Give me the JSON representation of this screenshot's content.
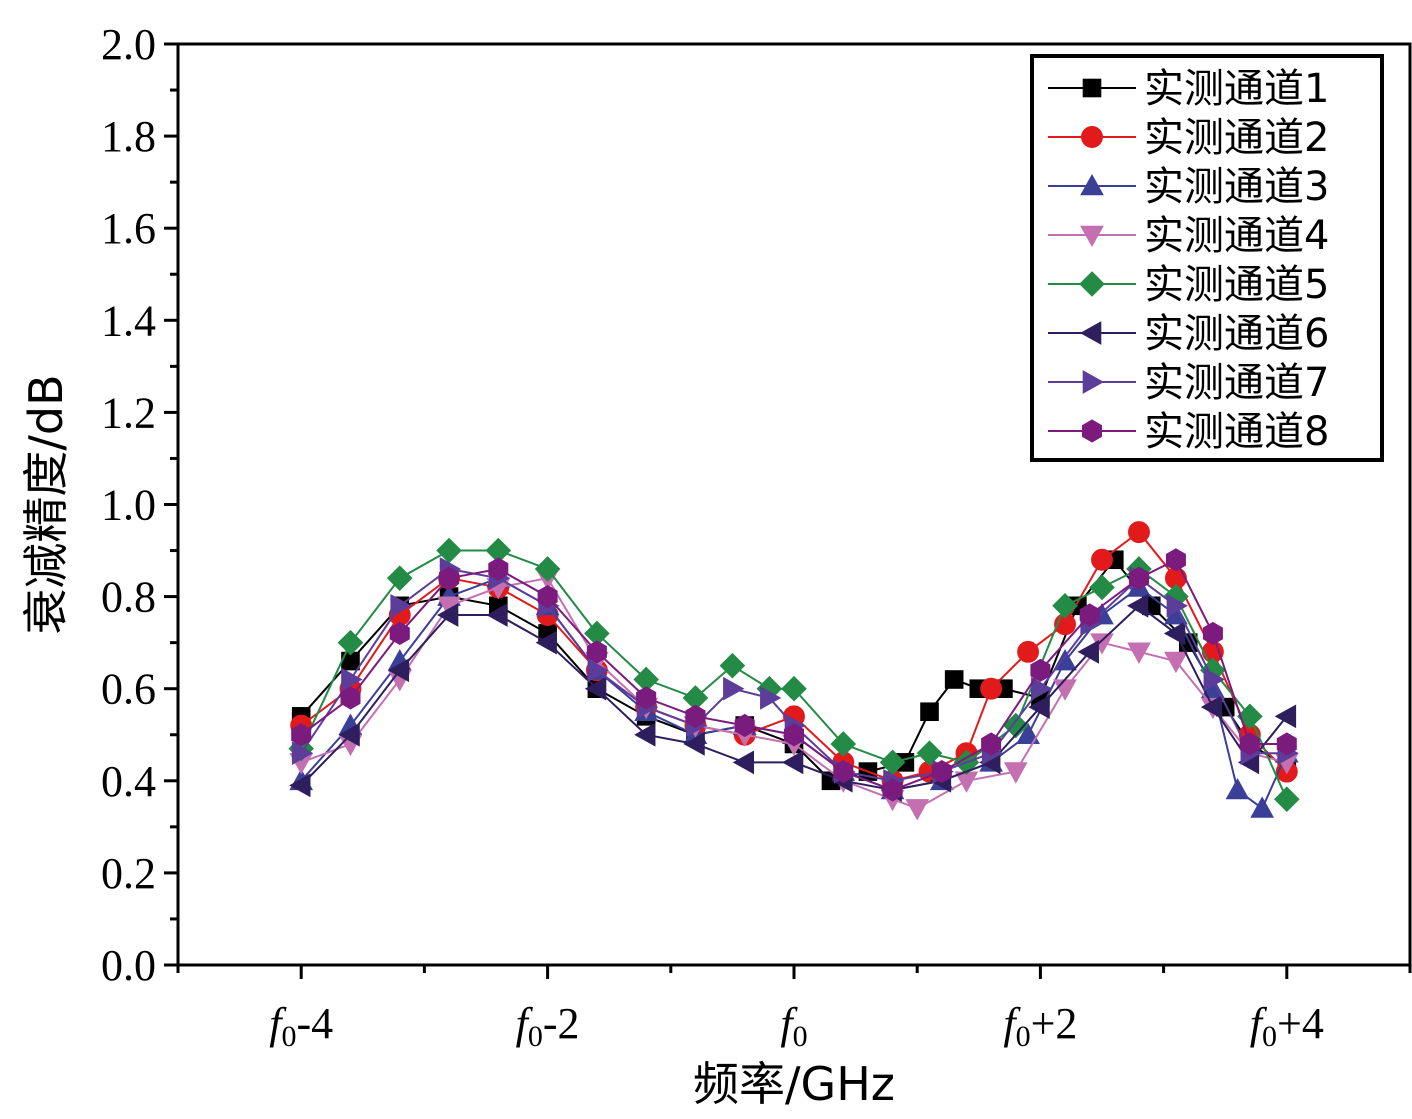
{
  "chart_data": {
    "type": "line",
    "title": "",
    "xlabel": "频率/GHz",
    "ylabel": "衰减精度/dB",
    "xlim": [
      -5,
      5
    ],
    "ylim": [
      0,
      2.0
    ],
    "x_ticks": [
      {
        "value": -4,
        "base": "f",
        "sub": "0",
        "suffix": "-4"
      },
      {
        "value": -2,
        "base": "f",
        "sub": "0",
        "suffix": "-2"
      },
      {
        "value": 0,
        "base": "f",
        "sub": "0",
        "suffix": ""
      },
      {
        "value": 2,
        "base": "f",
        "sub": "0",
        "suffix": "+2"
      },
      {
        "value": 4,
        "base": "f",
        "sub": "0",
        "suffix": "+4"
      }
    ],
    "y_ticks": [
      "0.0",
      "0.2",
      "0.4",
      "0.6",
      "0.8",
      "1.0",
      "1.2",
      "1.4",
      "1.6",
      "1.8",
      "2.0"
    ],
    "grid": false,
    "legend_position": "top-right",
    "series": [
      {
        "name": "实测通道1",
        "color": "#000000",
        "marker": "square",
        "points": [
          [
            -4,
            0.54
          ],
          [
            -3.6,
            0.66
          ],
          [
            -3.2,
            0.78
          ],
          [
            -2.8,
            0.8
          ],
          [
            -2.4,
            0.78
          ],
          [
            -2.0,
            0.72
          ],
          [
            -1.6,
            0.6
          ],
          [
            -1.2,
            0.54
          ],
          [
            -0.8,
            0.5
          ],
          [
            -0.4,
            0.52
          ],
          [
            0,
            0.48
          ],
          [
            0.3,
            0.4
          ],
          [
            0.6,
            0.42
          ],
          [
            0.9,
            0.44
          ],
          [
            1.1,
            0.55
          ],
          [
            1.3,
            0.62
          ],
          [
            1.5,
            0.6
          ],
          [
            1.7,
            0.6
          ],
          [
            2.0,
            0.58
          ],
          [
            2.3,
            0.78
          ],
          [
            2.6,
            0.88
          ],
          [
            2.9,
            0.78
          ],
          [
            3.2,
            0.7
          ],
          [
            3.5,
            0.56
          ],
          [
            3.7,
            0.48
          ],
          [
            4.0,
            0.43
          ]
        ]
      },
      {
        "name": "实测通道2",
        "color": "#e31a1c",
        "marker": "circle",
        "points": [
          [
            -4,
            0.52
          ],
          [
            -3.6,
            0.6
          ],
          [
            -3.2,
            0.76
          ],
          [
            -2.8,
            0.84
          ],
          [
            -2.4,
            0.82
          ],
          [
            -2.0,
            0.76
          ],
          [
            -1.6,
            0.64
          ],
          [
            -1.2,
            0.56
          ],
          [
            -0.8,
            0.52
          ],
          [
            -0.4,
            0.5
          ],
          [
            0,
            0.54
          ],
          [
            0.4,
            0.44
          ],
          [
            0.8,
            0.4
          ],
          [
            1.1,
            0.42
          ],
          [
            1.4,
            0.46
          ],
          [
            1.6,
            0.6
          ],
          [
            1.9,
            0.68
          ],
          [
            2.2,
            0.74
          ],
          [
            2.5,
            0.88
          ],
          [
            2.8,
            0.94
          ],
          [
            3.1,
            0.84
          ],
          [
            3.4,
            0.68
          ],
          [
            3.7,
            0.5
          ],
          [
            4.0,
            0.42
          ]
        ]
      },
      {
        "name": "实测通道3",
        "color": "#3a3f98",
        "marker": "triangle-up",
        "points": [
          [
            -4,
            0.4
          ],
          [
            -3.6,
            0.52
          ],
          [
            -3.2,
            0.66
          ],
          [
            -2.8,
            0.8
          ],
          [
            -2.4,
            0.84
          ],
          [
            -2.0,
            0.78
          ],
          [
            -1.6,
            0.64
          ],
          [
            -1.2,
            0.55
          ],
          [
            -0.8,
            0.5
          ],
          [
            -0.4,
            0.52
          ],
          [
            0,
            0.5
          ],
          [
            0.4,
            0.42
          ],
          [
            0.8,
            0.38
          ],
          [
            1.2,
            0.4
          ],
          [
            1.6,
            0.44
          ],
          [
            1.9,
            0.5
          ],
          [
            2.2,
            0.66
          ],
          [
            2.5,
            0.76
          ],
          [
            2.8,
            0.82
          ],
          [
            3.1,
            0.76
          ],
          [
            3.4,
            0.6
          ],
          [
            3.6,
            0.38
          ],
          [
            3.8,
            0.34
          ],
          [
            4.0,
            0.46
          ]
        ]
      },
      {
        "name": "实测通道4",
        "color": "#c46fb2",
        "marker": "triangle-down",
        "points": [
          [
            -4,
            0.44
          ],
          [
            -3.6,
            0.48
          ],
          [
            -3.2,
            0.62
          ],
          [
            -2.8,
            0.78
          ],
          [
            -2.4,
            0.82
          ],
          [
            -2.0,
            0.84
          ],
          [
            -1.6,
            0.66
          ],
          [
            -1.2,
            0.56
          ],
          [
            -0.8,
            0.52
          ],
          [
            -0.4,
            0.5
          ],
          [
            0,
            0.48
          ],
          [
            0.4,
            0.4
          ],
          [
            0.8,
            0.36
          ],
          [
            1.0,
            0.34
          ],
          [
            1.4,
            0.4
          ],
          [
            1.8,
            0.42
          ],
          [
            2.2,
            0.6
          ],
          [
            2.5,
            0.7
          ],
          [
            2.8,
            0.68
          ],
          [
            3.1,
            0.66
          ],
          [
            3.4,
            0.56
          ],
          [
            3.7,
            0.46
          ],
          [
            4.0,
            0.44
          ]
        ]
      },
      {
        "name": "实测通道5",
        "color": "#238b45",
        "marker": "diamond",
        "points": [
          [
            -4,
            0.47
          ],
          [
            -3.6,
            0.7
          ],
          [
            -3.2,
            0.84
          ],
          [
            -2.8,
            0.9
          ],
          [
            -2.4,
            0.9
          ],
          [
            -2.0,
            0.86
          ],
          [
            -1.6,
            0.72
          ],
          [
            -1.2,
            0.62
          ],
          [
            -0.8,
            0.58
          ],
          [
            -0.5,
            0.65
          ],
          [
            -0.2,
            0.6
          ],
          [
            0,
            0.6
          ],
          [
            0.4,
            0.48
          ],
          [
            0.8,
            0.44
          ],
          [
            1.1,
            0.46
          ],
          [
            1.4,
            0.44
          ],
          [
            1.8,
            0.52
          ],
          [
            2.2,
            0.78
          ],
          [
            2.5,
            0.82
          ],
          [
            2.8,
            0.86
          ],
          [
            3.1,
            0.8
          ],
          [
            3.4,
            0.64
          ],
          [
            3.7,
            0.54
          ],
          [
            4.0,
            0.36
          ]
        ]
      },
      {
        "name": "实测通道6",
        "color": "#2e1e5e",
        "marker": "triangle-left",
        "points": [
          [
            -4,
            0.39
          ],
          [
            -3.6,
            0.5
          ],
          [
            -3.2,
            0.64
          ],
          [
            -2.8,
            0.76
          ],
          [
            -2.4,
            0.76
          ],
          [
            -2.0,
            0.7
          ],
          [
            -1.6,
            0.6
          ],
          [
            -1.2,
            0.5
          ],
          [
            -0.8,
            0.48
          ],
          [
            -0.4,
            0.44
          ],
          [
            0,
            0.44
          ],
          [
            0.4,
            0.4
          ],
          [
            0.8,
            0.38
          ],
          [
            1.2,
            0.4
          ],
          [
            1.6,
            0.44
          ],
          [
            2.0,
            0.56
          ],
          [
            2.4,
            0.68
          ],
          [
            2.8,
            0.78
          ],
          [
            3.1,
            0.72
          ],
          [
            3.4,
            0.56
          ],
          [
            3.7,
            0.44
          ],
          [
            4.0,
            0.54
          ]
        ]
      },
      {
        "name": "实测通道7",
        "color": "#5c3d99",
        "marker": "triangle-right",
        "points": [
          [
            -4,
            0.46
          ],
          [
            -3.6,
            0.62
          ],
          [
            -3.2,
            0.78
          ],
          [
            -2.8,
            0.86
          ],
          [
            -2.4,
            0.84
          ],
          [
            -2.0,
            0.78
          ],
          [
            -1.6,
            0.64
          ],
          [
            -1.2,
            0.56
          ],
          [
            -0.8,
            0.52
          ],
          [
            -0.5,
            0.6
          ],
          [
            -0.2,
            0.58
          ],
          [
            0,
            0.52
          ],
          [
            0.4,
            0.42
          ],
          [
            0.8,
            0.4
          ],
          [
            1.2,
            0.42
          ],
          [
            1.6,
            0.46
          ],
          [
            2.0,
            0.6
          ],
          [
            2.4,
            0.74
          ],
          [
            2.8,
            0.84
          ],
          [
            3.1,
            0.78
          ],
          [
            3.4,
            0.62
          ],
          [
            3.7,
            0.46
          ],
          [
            4.0,
            0.46
          ]
        ]
      },
      {
        "name": "实测通道8",
        "color": "#7b1b7e",
        "marker": "hexagon",
        "points": [
          [
            -4,
            0.5
          ],
          [
            -3.6,
            0.58
          ],
          [
            -3.2,
            0.72
          ],
          [
            -2.8,
            0.84
          ],
          [
            -2.4,
            0.86
          ],
          [
            -2.0,
            0.8
          ],
          [
            -1.6,
            0.68
          ],
          [
            -1.2,
            0.58
          ],
          [
            -0.8,
            0.54
          ],
          [
            -0.4,
            0.52
          ],
          [
            0,
            0.5
          ],
          [
            0.4,
            0.42
          ],
          [
            0.8,
            0.38
          ],
          [
            1.2,
            0.42
          ],
          [
            1.6,
            0.48
          ],
          [
            2.0,
            0.64
          ],
          [
            2.4,
            0.76
          ],
          [
            2.8,
            0.84
          ],
          [
            3.1,
            0.88
          ],
          [
            3.4,
            0.72
          ],
          [
            3.7,
            0.48
          ],
          [
            4.0,
            0.48
          ]
        ]
      }
    ]
  }
}
